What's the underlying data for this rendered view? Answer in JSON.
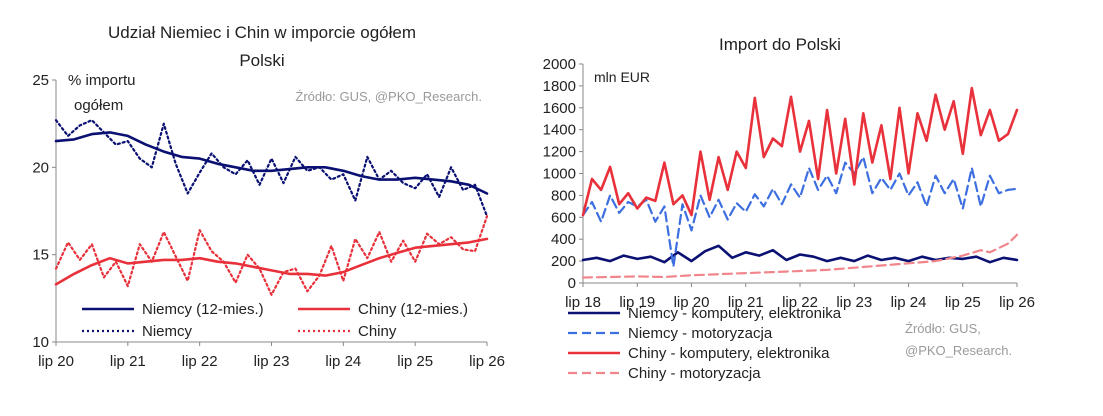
{
  "chart_data": [
    {
      "type": "line",
      "title": "Udział Niemiec i Chin w imporcie ogółem",
      "title_line2": "Polski",
      "ylabel_line1": "% importu",
      "ylabel_line2": "ogółem",
      "source": "Źródło: GUS, @PKO_Research.",
      "ylim": [
        10,
        25
      ],
      "yticks": [
        "10",
        "15",
        "20",
        "25"
      ],
      "x_tick_labels": [
        "lip 20",
        "lip 21",
        "lip 22",
        "lip 23",
        "lip 24",
        "lip 25",
        "lip 26"
      ],
      "x_index_range": [
        0,
        72
      ],
      "legend_position": "bottom",
      "series": [
        {
          "name": "Niemcy (12-mies.)",
          "color": "#0a1172",
          "style": "solid",
          "x": [
            0,
            3,
            6,
            9,
            12,
            15,
            18,
            21,
            24,
            27,
            30,
            33,
            36,
            39,
            42,
            45,
            48,
            51,
            54,
            57,
            60,
            63,
            66,
            69,
            72
          ],
          "values": [
            21.5,
            21.6,
            21.9,
            22.0,
            21.8,
            21.3,
            20.9,
            20.6,
            20.5,
            20.2,
            20.0,
            19.8,
            19.8,
            19.9,
            20.0,
            20.0,
            19.8,
            19.5,
            19.3,
            19.3,
            19.4,
            19.3,
            19.2,
            19.0,
            18.5
          ]
        },
        {
          "name": "Chiny (12-mies.)",
          "color": "#e8313b",
          "style": "solid",
          "x": [
            0,
            3,
            6,
            9,
            12,
            15,
            18,
            21,
            24,
            27,
            30,
            33,
            36,
            39,
            42,
            45,
            48,
            51,
            54,
            57,
            60,
            63,
            66,
            69,
            72
          ],
          "values": [
            13.3,
            13.9,
            14.4,
            14.8,
            14.5,
            14.6,
            14.7,
            14.7,
            14.8,
            14.6,
            14.5,
            14.3,
            14.1,
            13.9,
            13.9,
            13.8,
            14.0,
            14.4,
            14.8,
            15.1,
            15.4,
            15.5,
            15.6,
            15.7,
            15.9
          ]
        },
        {
          "name": "Niemcy",
          "color": "#0a1172",
          "style": "dotted",
          "x": [
            0,
            2,
            4,
            6,
            8,
            10,
            12,
            14,
            16,
            18,
            20,
            22,
            24,
            26,
            28,
            30,
            32,
            34,
            36,
            38,
            40,
            42,
            44,
            46,
            48,
            50,
            52,
            54,
            56,
            58,
            60,
            62,
            64,
            66,
            68,
            70,
            72
          ],
          "values": [
            22.7,
            21.8,
            22.4,
            22.7,
            22.0,
            21.3,
            21.5,
            20.5,
            20.0,
            22.5,
            20.2,
            18.5,
            19.7,
            20.8,
            20.0,
            19.6,
            20.4,
            19.0,
            20.5,
            19.1,
            20.6,
            19.8,
            20.0,
            19.3,
            19.6,
            18.1,
            20.6,
            19.3,
            19.8,
            19.1,
            18.8,
            19.6,
            18.3,
            20.0,
            18.7,
            19.0,
            17.2
          ]
        },
        {
          "name": "Chiny",
          "color": "#e8313b",
          "style": "dotted",
          "x": [
            0,
            2,
            4,
            6,
            8,
            10,
            12,
            14,
            16,
            18,
            20,
            22,
            24,
            26,
            28,
            30,
            32,
            34,
            36,
            38,
            40,
            42,
            44,
            46,
            48,
            50,
            52,
            54,
            56,
            58,
            60,
            62,
            64,
            66,
            68,
            70,
            72
          ],
          "values": [
            14.2,
            15.7,
            14.7,
            15.6,
            13.7,
            14.6,
            13.2,
            15.6,
            14.6,
            16.3,
            14.9,
            13.5,
            16.4,
            15.2,
            14.6,
            13.4,
            15.0,
            14.2,
            12.7,
            14.0,
            14.2,
            12.9,
            13.8,
            15.5,
            13.5,
            15.9,
            14.8,
            16.3,
            14.6,
            15.8,
            14.6,
            16.2,
            15.6,
            16.0,
            15.3,
            15.2,
            17.2
          ]
        }
      ]
    },
    {
      "type": "line",
      "title": "Import do Polski",
      "ylabel": "mln EUR",
      "source_line1": "Źródło: GUS,",
      "source_line2": "@PKO_Research.",
      "ylim": [
        0,
        2000
      ],
      "yticks": [
        "0",
        "200",
        "400",
        "600",
        "800",
        "1000",
        "1200",
        "1400",
        "1600",
        "1800",
        "2000"
      ],
      "x_tick_labels": [
        "lip 18",
        "lip 19",
        "lip 20",
        "lip 21",
        "lip 22",
        "lip 23",
        "lip 24",
        "lip 25",
        "lip 26"
      ],
      "x_index_range": [
        0,
        96
      ],
      "legend_position": "bottom",
      "series": [
        {
          "name": "Niemcy  - komputery, elektronika",
          "color": "#0a1172",
          "style": "solid",
          "x": [
            0,
            3,
            6,
            9,
            12,
            15,
            18,
            21,
            24,
            27,
            30,
            33,
            36,
            39,
            42,
            45,
            48,
            51,
            54,
            57,
            60,
            63,
            66,
            69,
            72,
            75,
            78,
            81,
            84,
            87,
            90,
            93,
            96
          ],
          "values": [
            210,
            230,
            200,
            250,
            220,
            240,
            190,
            280,
            200,
            290,
            340,
            230,
            280,
            250,
            300,
            210,
            260,
            240,
            200,
            230,
            200,
            250,
            210,
            230,
            200,
            240,
            210,
            230,
            220,
            240,
            190,
            230,
            210
          ]
        },
        {
          "name": "Niemcy - motoryzacja",
          "color": "#3d6fe0",
          "style": "dashed",
          "x": [
            0,
            2,
            4,
            6,
            8,
            10,
            12,
            14,
            16,
            18,
            20,
            22,
            24,
            26,
            28,
            30,
            32,
            34,
            36,
            38,
            40,
            42,
            44,
            46,
            48,
            50,
            52,
            54,
            56,
            58,
            60,
            62,
            64,
            66,
            68,
            70,
            72,
            74,
            76,
            78,
            80,
            82,
            84,
            86,
            88,
            90,
            92,
            94,
            96
          ],
          "values": [
            620,
            740,
            560,
            800,
            640,
            740,
            700,
            760,
            560,
            700,
            150,
            720,
            480,
            800,
            600,
            760,
            580,
            730,
            650,
            810,
            700,
            860,
            720,
            900,
            780,
            1050,
            850,
            980,
            820,
            1100,
            1000,
            1150,
            820,
            960,
            850,
            1000,
            800,
            920,
            700,
            980,
            820,
            950,
            680,
            1050,
            700,
            980,
            820,
            850,
            860
          ]
        },
        {
          "name": "Chiny  - komputery, elektronika",
          "color": "#e8313b",
          "style": "solid",
          "x": [
            0,
            2,
            4,
            6,
            8,
            10,
            12,
            14,
            16,
            18,
            20,
            22,
            24,
            26,
            28,
            30,
            32,
            34,
            36,
            38,
            40,
            42,
            44,
            46,
            48,
            50,
            52,
            54,
            56,
            58,
            60,
            62,
            64,
            66,
            68,
            70,
            72,
            74,
            76,
            78,
            80,
            82,
            84,
            86,
            88,
            90,
            92,
            94,
            96
          ],
          "values": [
            620,
            950,
            850,
            1060,
            720,
            820,
            680,
            780,
            750,
            1100,
            720,
            800,
            620,
            1200,
            760,
            1150,
            850,
            1200,
            1050,
            1690,
            1150,
            1320,
            1250,
            1700,
            1200,
            1480,
            950,
            1580,
            1000,
            1500,
            900,
            1550,
            1100,
            1440,
            950,
            1600,
            1000,
            1550,
            1300,
            1720,
            1400,
            1660,
            1180,
            1780,
            1350,
            1580,
            1300,
            1360,
            1580
          ]
        },
        {
          "name": "Chiny  - motoryzacja",
          "color": "#f0868c",
          "style": "dashed",
          "x": [
            0,
            6,
            12,
            18,
            24,
            30,
            36,
            42,
            48,
            54,
            60,
            66,
            72,
            78,
            84,
            88,
            90,
            92,
            94,
            96
          ],
          "values": [
            50,
            55,
            60,
            55,
            70,
            80,
            90,
            100,
            110,
            120,
            140,
            160,
            180,
            200,
            250,
            300,
            280,
            320,
            360,
            440
          ]
        }
      ]
    }
  ]
}
